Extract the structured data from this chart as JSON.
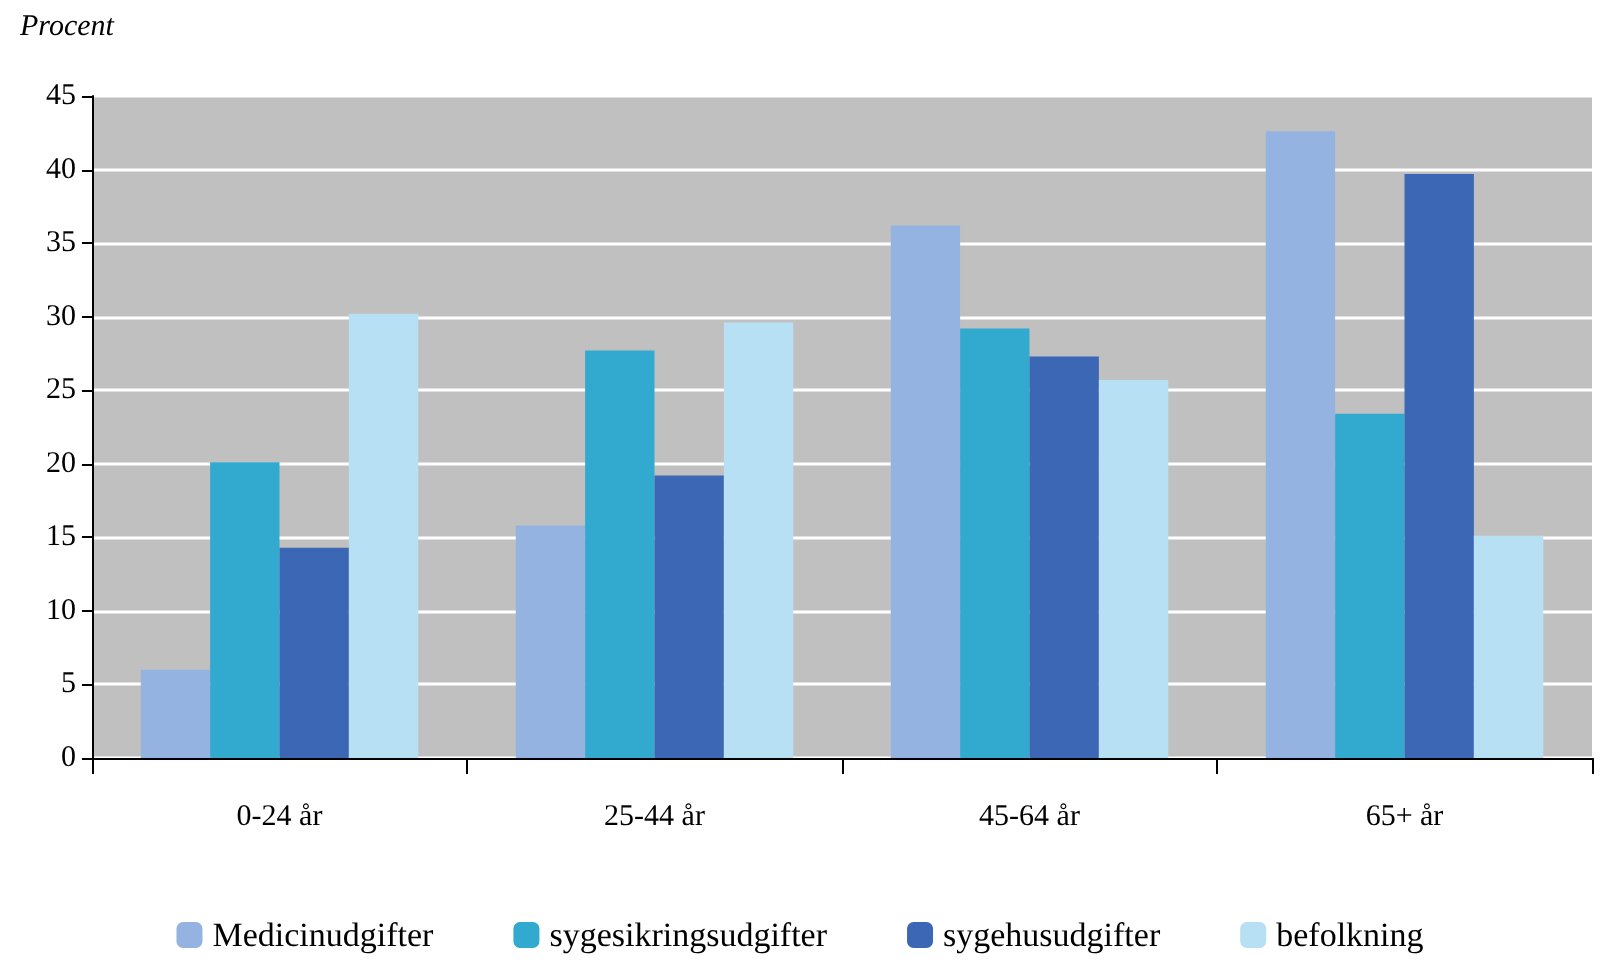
{
  "chart_data": {
    "type": "bar",
    "ylabel": "Procent",
    "categories": [
      "0-24 år",
      "25-44 år",
      "45-64 år",
      "65+ år"
    ],
    "series": [
      {
        "name": "Medicinudgifter",
        "color": "#95b3e0",
        "values": [
          6.0,
          15.8,
          36.2,
          42.6
        ]
      },
      {
        "name": "sygesikringsudgifter",
        "color": "#32a9cf",
        "values": [
          20.1,
          27.7,
          29.2,
          23.4
        ]
      },
      {
        "name": "sygehusudgifter",
        "color": "#3c67b5",
        "values": [
          14.3,
          19.2,
          27.3,
          39.7
        ]
      },
      {
        "name": "befolkning",
        "color": "#b7e0f5",
        "values": [
          30.2,
          29.6,
          25.7,
          15.1
        ]
      }
    ],
    "ylim": [
      0,
      45
    ],
    "yticks": [
      0,
      5,
      10,
      15,
      20,
      25,
      30,
      35,
      40,
      45
    ],
    "grid": "y",
    "legend": "bottom"
  }
}
